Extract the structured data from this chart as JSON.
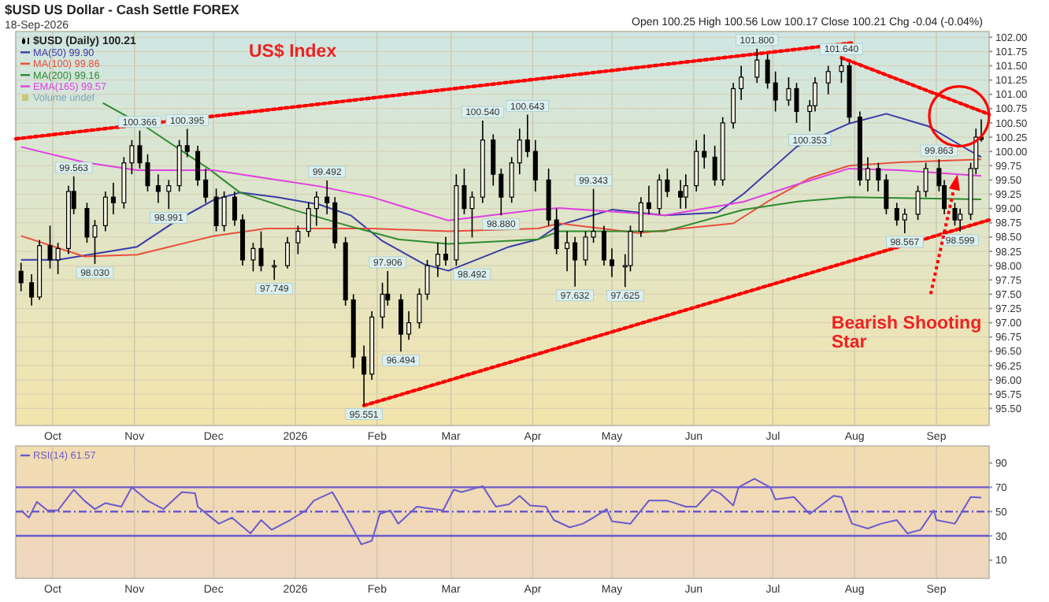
{
  "chart_data": [
    {
      "type": "candlestick",
      "title": "$USD US Dollar - Cash Settle FOREX",
      "subtitle": "18-Sep-2026",
      "annotations": [
        "Open 100.25 High 100.56 Low 100.17 Close 100.21 Chg -0.04 (-0.04%)",
        "US$ Index",
        "Volume undef",
        {
          "text": "Bearish Shooting Star",
          "x": "2026-09-09",
          "y": 99.6
        }
      ],
      "xlim": [
        "2025-09-17",
        "2026-09-21"
      ],
      "xticks": [
        {
          "value": "2025-10-01",
          "label": "Oct"
        },
        {
          "value": "2025-11-01",
          "label": "Nov"
        },
        {
          "value": "2025-12-01",
          "label": "Dec"
        },
        {
          "value": "2026-01-01",
          "label": "2026"
        },
        {
          "value": "2026-02-01",
          "label": "Feb"
        },
        {
          "value": "2026-03-01",
          "label": "Mar"
        },
        {
          "value": "2026-04-01",
          "label": "Apr"
        },
        {
          "value": "2026-05-01",
          "label": "May"
        },
        {
          "value": "2026-06-01",
          "label": "Jun"
        },
        {
          "value": "2026-07-01",
          "label": "Jul"
        },
        {
          "value": "2026-08-01",
          "label": "Aug"
        },
        {
          "value": "2026-09-01",
          "label": "Sep"
        }
      ],
      "ylim": [
        95.2,
        102.1
      ],
      "yticks": [
        {
          "value": 95.5,
          "label": "95.50"
        },
        {
          "value": 95.75,
          "label": "95.75"
        },
        {
          "value": 96,
          "label": "96.00"
        },
        {
          "value": 96.25,
          "label": "96.25"
        },
        {
          "value": 96.5,
          "label": "96.50"
        },
        {
          "value": 96.75,
          "label": "96.75"
        },
        {
          "value": 97,
          "label": "97.00"
        },
        {
          "value": 97.25,
          "label": "97.25"
        },
        {
          "value": 97.5,
          "label": "97.50"
        },
        {
          "value": 97.75,
          "label": "97.75"
        },
        {
          "value": 98,
          "label": "98.00"
        },
        {
          "value": 98.25,
          "label": "98.25"
        },
        {
          "value": 98.5,
          "label": "98.50"
        },
        {
          "value": 98.75,
          "label": "98.75"
        },
        {
          "value": 99,
          "label": "99.00"
        },
        {
          "value": 99.25,
          "label": "99.25"
        },
        {
          "value": 99.5,
          "label": "99.50"
        },
        {
          "value": 99.75,
          "label": "99.75"
        },
        {
          "value": 100,
          "label": "100.00"
        },
        {
          "value": 100.25,
          "label": "100.25"
        },
        {
          "value": 100.5,
          "label": "100.50"
        },
        {
          "value": 100.75,
          "label": "100.75"
        },
        {
          "value": 101,
          "label": "101.00"
        },
        {
          "value": 101.25,
          "label": "101.25"
        },
        {
          "value": 101.5,
          "label": "101.50"
        },
        {
          "value": 101.75,
          "label": "101.75"
        },
        {
          "value": 102,
          "label": "102.00"
        }
      ],
      "grid": true,
      "legend": "top left",
      "series": [
        {
          "type": "candlestick",
          "name": "$USD (Daily) 100.21",
          "color": "#000000",
          "x": [
            "2025-09-19",
            "2025-09-23",
            "2025-09-26",
            "2025-09-30",
            "2025-10-03",
            "2025-10-07",
            "2025-10-09",
            "2025-10-14",
            "2025-10-17",
            "2025-10-21",
            "2025-10-24",
            "2025-10-28",
            "2025-10-31",
            "2025-11-03",
            "2025-11-06",
            "2025-11-10",
            "2025-11-14",
            "2025-11-18",
            "2025-11-21",
            "2025-11-25",
            "2025-11-28",
            "2025-12-02",
            "2025-12-05",
            "2025-12-09",
            "2025-12-12",
            "2025-12-16",
            "2025-12-19",
            "2025-12-24",
            "2025-12-29",
            "2026-01-02",
            "2026-01-06",
            "2026-01-09",
            "2026-01-13",
            "2026-01-16",
            "2026-01-20",
            "2026-01-23",
            "2026-01-27",
            "2026-01-30",
            "2026-02-03",
            "2026-02-05",
            "2026-02-10",
            "2026-02-13",
            "2026-02-17",
            "2026-02-20",
            "2026-02-24",
            "2026-02-27",
            "2026-03-03",
            "2026-03-06",
            "2026-03-09",
            "2026-03-13",
            "2026-03-17",
            "2026-03-20",
            "2026-03-24",
            "2026-03-27",
            "2026-03-30",
            "2026-04-02",
            "2026-04-07",
            "2026-04-10",
            "2026-04-14",
            "2026-04-17",
            "2026-04-21",
            "2026-04-24",
            "2026-04-28",
            "2026-05-01",
            "2026-05-06",
            "2026-05-08",
            "2026-05-12",
            "2026-05-15",
            "2026-05-19",
            "2026-05-22",
            "2026-05-27",
            "2026-05-29",
            "2026-06-02",
            "2026-06-05",
            "2026-06-09",
            "2026-06-12",
            "2026-06-16",
            "2026-06-19",
            "2026-06-25",
            "2026-06-29",
            "2026-07-02",
            "2026-07-07",
            "2026-07-10",
            "2026-07-15",
            "2026-07-17",
            "2026-07-22",
            "2026-07-27",
            "2026-07-30",
            "2026-08-03",
            "2026-08-06",
            "2026-08-10",
            "2026-08-13",
            "2026-08-17",
            "2026-08-20",
            "2026-08-25",
            "2026-08-28",
            "2026-09-02",
            "2026-09-04",
            "2026-09-08",
            "2026-09-10",
            "2026-09-14",
            "2026-09-16",
            "2026-09-18"
          ],
          "ohlc": [
            [
              97.9,
              98.05,
              97.55,
              97.7
            ],
            [
              97.7,
              97.85,
              97.3,
              97.45
            ],
            [
              97.45,
              98.45,
              97.4,
              98.35
            ],
            [
              98.35,
              98.7,
              97.95,
              98.1
            ],
            [
              98.1,
              98.4,
              97.85,
              98.3
            ],
            [
              98.3,
              99.4,
              98.2,
              99.3
            ],
            [
              99.3,
              99.563,
              98.9,
              99.0
            ],
            [
              99.0,
              99.1,
              98.4,
              98.5
            ],
            [
              98.5,
              98.8,
              98.03,
              98.7
            ],
            [
              98.7,
              99.3,
              98.6,
              99.2
            ],
            [
              99.2,
              99.45,
              98.9,
              99.1
            ],
            [
              99.1,
              99.9,
              99.0,
              99.8
            ],
            [
              99.8,
              100.2,
              99.6,
              100.1
            ],
            [
              100.1,
              100.366,
              99.7,
              99.8
            ],
            [
              99.8,
              99.95,
              99.3,
              99.4
            ],
            [
              99.4,
              99.6,
              99.1,
              99.3
            ],
            [
              99.3,
              99.5,
              98.991,
              99.4
            ],
            [
              99.4,
              100.2,
              99.3,
              100.1
            ],
            [
              100.1,
              100.395,
              99.9,
              100.0
            ],
            [
              100.0,
              100.1,
              99.4,
              99.5
            ],
            [
              99.5,
              99.7,
              99.1,
              99.2
            ],
            [
              99.2,
              99.35,
              98.6,
              98.7
            ],
            [
              98.7,
              99.3,
              98.6,
              99.2
            ],
            [
              99.2,
              99.3,
              98.7,
              98.8
            ],
            [
              98.8,
              98.9,
              98.0,
              98.1
            ],
            [
              98.1,
              98.4,
              97.9,
              98.3
            ],
            [
              98.3,
              98.6,
              97.9,
              98.0
            ],
            [
              98.0,
              98.1,
              97.749,
              98.0
            ],
            [
              98.0,
              98.5,
              97.95,
              98.4
            ],
            [
              98.4,
              98.7,
              98.2,
              98.6
            ],
            [
              98.6,
              99.1,
              98.5,
              99.0
            ],
            [
              99.0,
              99.3,
              98.7,
              99.2
            ],
            [
              99.2,
              99.492,
              98.9,
              99.1
            ],
            [
              99.1,
              99.2,
              98.3,
              98.4
            ],
            [
              98.4,
              98.5,
              97.3,
              97.4
            ],
            [
              97.4,
              97.5,
              96.2,
              96.4
            ],
            [
              96.4,
              96.6,
              95.551,
              96.1
            ],
            [
              96.1,
              97.2,
              96.0,
              97.1
            ],
            [
              97.1,
              97.7,
              96.9,
              97.5
            ],
            [
              97.5,
              97.906,
              97.3,
              97.4
            ],
            [
              97.4,
              97.5,
              96.494,
              96.8
            ],
            [
              96.8,
              97.2,
              96.7,
              97.0
            ],
            [
              97.0,
              97.6,
              96.9,
              97.5
            ],
            [
              97.5,
              98.1,
              97.4,
              98.0
            ],
            [
              98.0,
              98.4,
              97.8,
              98.2
            ],
            [
              98.2,
              98.5,
              98.0,
              98.1
            ],
            [
              98.1,
              99.6,
              98.0,
              99.4
            ],
            [
              99.4,
              99.7,
              98.9,
              99.0
            ],
            [
              99.0,
              99.3,
              98.492,
              99.2
            ],
            [
              99.2,
              100.54,
              99.1,
              100.2
            ],
            [
              100.2,
              100.3,
              99.4,
              99.6
            ],
            [
              99.6,
              99.7,
              98.88,
              99.2
            ],
            [
              99.2,
              99.9,
              99.1,
              99.8
            ],
            [
              99.8,
              100.4,
              99.6,
              100.2
            ],
            [
              100.2,
              100.643,
              99.9,
              100.0
            ],
            [
              100.0,
              100.2,
              99.3,
              99.5
            ],
            [
              99.5,
              99.7,
              98.7,
              98.8
            ],
            [
              98.8,
              99.0,
              98.2,
              98.3
            ],
            [
              98.3,
              98.6,
              97.9,
              98.4
            ],
            [
              98.4,
              98.5,
              97.632,
              98.1
            ],
            [
              98.1,
              98.6,
              98.0,
              98.5
            ],
            [
              98.5,
              99.343,
              98.4,
              98.6
            ],
            [
              98.6,
              98.7,
              98.0,
              98.1
            ],
            [
              98.1,
              98.3,
              97.8,
              98.0
            ],
            [
              98.0,
              98.2,
              97.625,
              98.0
            ],
            [
              98.0,
              98.7,
              97.9,
              98.6
            ],
            [
              98.6,
              99.2,
              98.5,
              99.1
            ],
            [
              99.1,
              99.4,
              98.9,
              99.0
            ],
            [
              99.0,
              99.6,
              98.9,
              99.5
            ],
            [
              99.5,
              99.7,
              99.2,
              99.3
            ],
            [
              99.3,
              99.5,
              99.0,
              99.2
            ],
            [
              99.2,
              99.6,
              99.0,
              99.4
            ],
            [
              99.4,
              100.2,
              99.3,
              100.0
            ],
            [
              100.0,
              100.3,
              99.7,
              99.9
            ],
            [
              99.9,
              100.1,
              99.4,
              99.5
            ],
            [
              99.5,
              100.6,
              99.4,
              100.5
            ],
            [
              100.5,
              101.2,
              100.4,
              101.1
            ],
            [
              101.1,
              101.5,
              100.9,
              101.3
            ],
            [
              101.3,
              101.8,
              101.2,
              101.6
            ],
            [
              101.6,
              101.7,
              101.1,
              101.2
            ],
            [
              101.2,
              101.4,
              100.7,
              100.9
            ],
            [
              100.9,
              101.3,
              100.8,
              101.1
            ],
            [
              101.1,
              101.2,
              100.5,
              100.7
            ],
            [
              100.7,
              100.9,
              100.353,
              100.8
            ],
            [
              100.8,
              101.3,
              100.7,
              101.2
            ],
            [
              101.2,
              101.5,
              101.0,
              101.4
            ],
            [
              101.4,
              101.64,
              101.2,
              101.5
            ],
            [
              101.5,
              101.55,
              100.5,
              100.6
            ],
            [
              100.6,
              100.7,
              99.4,
              99.5
            ],
            [
              99.5,
              99.9,
              99.3,
              99.7
            ],
            [
              99.7,
              99.8,
              99.3,
              99.5
            ],
            [
              99.5,
              99.6,
              98.9,
              99.0
            ],
            [
              99.0,
              99.1,
              98.7,
              98.8
            ],
            [
              98.8,
              99.0,
              98.567,
              98.9
            ],
            [
              98.9,
              99.4,
              98.8,
              99.3
            ],
            [
              99.3,
              99.8,
              99.2,
              99.7
            ],
            [
              99.7,
              99.863,
              99.3,
              99.4
            ],
            [
              99.4,
              99.5,
              98.9,
              99.0
            ],
            [
              99.0,
              99.1,
              98.7,
              98.8
            ],
            [
              98.8,
              99.0,
              98.599,
              98.9
            ],
            [
              98.9,
              99.8,
              98.8,
              99.7
            ],
            [
              99.7,
              100.4,
              99.6,
              100.25
            ],
            [
              100.25,
              100.56,
              100.17,
              100.21
            ]
          ],
          "value_labels": [
            null,
            null,
            null,
            null,
            null,
            null,
            "99.563",
            null,
            "98.030",
            null,
            null,
            null,
            null,
            "100.366",
            null,
            null,
            "98.991",
            null,
            "100.395",
            null,
            null,
            null,
            null,
            null,
            null,
            null,
            null,
            "97.749",
            null,
            null,
            null,
            null,
            "99.492",
            null,
            null,
            null,
            "95.551",
            null,
            null,
            "97.906",
            "96.494",
            null,
            null,
            null,
            null,
            null,
            null,
            null,
            "98.492",
            "100.540",
            null,
            "98.880",
            null,
            null,
            "100.643",
            null,
            null,
            null,
            null,
            "97.632",
            null,
            "99.343",
            null,
            null,
            "97.625",
            null,
            null,
            null,
            null,
            null,
            null,
            null,
            null,
            null,
            null,
            null,
            null,
            null,
            "101.800",
            null,
            null,
            null,
            null,
            "100.353",
            null,
            null,
            "101.640",
            null,
            null,
            null,
            null,
            null,
            null,
            "98.567",
            null,
            null,
            "99.863",
            null,
            null,
            "98.599",
            null,
            null,
            null
          ]
        },
        {
          "type": "line",
          "name": "MA(50) 99.90",
          "color": "#3a3aa8",
          "x": [
            "2025-09-19",
            "2025-10-03",
            "2025-11-02",
            "2025-11-17",
            "2025-12-01",
            "2025-12-11",
            "2025-12-25",
            "2026-01-10",
            "2026-01-22",
            "2026-02-03",
            "2026-02-19",
            "2026-02-28",
            "2026-03-11",
            "2026-03-23",
            "2026-04-03",
            "2026-04-11",
            "2026-05-01",
            "2026-05-21",
            "2026-06-10",
            "2026-06-20",
            "2026-07-10",
            "2026-07-30",
            "2026-08-13",
            "2026-08-29",
            "2026-09-13",
            "2026-09-18"
          ],
          "values": [
            98.1,
            98.1,
            98.33,
            98.79,
            99.15,
            99.28,
            99.2,
            99.07,
            98.88,
            98.43,
            98.02,
            97.91,
            98.11,
            98.33,
            98.46,
            98.71,
            98.98,
            98.88,
            98.93,
            99.26,
            100.08,
            100.49,
            100.66,
            100.44,
            100.03,
            99.9
          ]
        },
        {
          "type": "line",
          "name": "MA(100) 99.86",
          "color": "#e8503c",
          "x": [
            "2025-09-19",
            "2025-10-13",
            "2025-11-02",
            "2025-12-01",
            "2025-12-21",
            "2026-01-10",
            "2026-01-30",
            "2026-02-28",
            "2026-04-03",
            "2026-04-11",
            "2026-05-11",
            "2026-06-16",
            "2026-06-30",
            "2026-07-15",
            "2026-07-30",
            "2026-08-18",
            "2026-09-18"
          ],
          "values": [
            98.52,
            98.16,
            98.19,
            98.52,
            98.65,
            98.65,
            98.65,
            98.6,
            98.65,
            98.74,
            98.57,
            98.74,
            99.15,
            99.53,
            99.75,
            99.81,
            99.86
          ]
        },
        {
          "type": "line",
          "name": "MA(200) 99.16",
          "color": "#2e8b2e",
          "x": [
            "2025-10-20",
            "2025-11-05",
            "2025-11-29",
            "2025-12-11",
            "2025-12-31",
            "2026-01-20",
            "2026-02-09",
            "2026-02-28",
            "2026-04-03",
            "2026-04-11",
            "2026-05-21",
            "2026-06-20",
            "2026-07-10",
            "2026-07-30",
            "2026-09-18"
          ],
          "values": [
            100.85,
            100.44,
            99.7,
            99.28,
            98.98,
            98.71,
            98.46,
            98.38,
            98.46,
            98.6,
            98.6,
            98.98,
            99.12,
            99.2,
            99.16
          ]
        },
        {
          "type": "line",
          "name": "EMA(165) 99.57",
          "color": "#e040e0",
          "x": [
            "2025-09-19",
            "2025-10-13",
            "2025-11-02",
            "2025-12-01",
            "2025-12-21",
            "2026-01-10",
            "2026-01-30",
            "2026-02-28",
            "2026-04-03",
            "2026-04-11",
            "2026-05-21",
            "2026-06-20",
            "2026-07-10",
            "2026-07-30",
            "2026-08-18",
            "2026-09-18"
          ],
          "values": [
            100.08,
            99.81,
            99.67,
            99.67,
            99.53,
            99.39,
            99.2,
            98.79,
            98.98,
            99.01,
            98.88,
            99.12,
            99.42,
            99.7,
            99.67,
            99.57
          ]
        },
        {
          "type": "line",
          "color": "#ff0000",
          "line_style": "dotted",
          "x": [
            "2025-09-17",
            "2026-07-31"
          ],
          "values": [
            100.22,
            101.9
          ]
        },
        {
          "type": "line",
          "color": "#ff0000",
          "line_style": "dotted",
          "x": [
            "2026-01-27",
            "2026-09-21"
          ],
          "values": [
            95.55,
            98.8
          ]
        },
        {
          "type": "line",
          "color": "#ff0000",
          "line_style": "dotted",
          "x": [
            "2026-07-27",
            "2026-09-21"
          ],
          "values": [
            101.64,
            100.65
          ]
        }
      ]
    },
    {
      "type": "line",
      "xlim": [
        "2025-09-17",
        "2026-09-21"
      ],
      "xticks": [
        {
          "value": "2025-10-01",
          "label": "Oct"
        },
        {
          "value": "2025-11-01",
          "label": "Nov"
        },
        {
          "value": "2025-12-01",
          "label": "Dec"
        },
        {
          "value": "2026-01-01",
          "label": "2026"
        },
        {
          "value": "2026-02-01",
          "label": "Feb"
        },
        {
          "value": "2026-03-01",
          "label": "Mar"
        },
        {
          "value": "2026-04-01",
          "label": "Apr"
        },
        {
          "value": "2026-05-01",
          "label": "May"
        },
        {
          "value": "2026-06-01",
          "label": "Jun"
        },
        {
          "value": "2026-07-01",
          "label": "Jul"
        },
        {
          "value": "2026-08-01",
          "label": "Aug"
        },
        {
          "value": "2026-09-01",
          "label": "Sep"
        }
      ],
      "ylim": [
        -5,
        104
      ],
      "yticks": [
        10,
        30,
        50,
        70,
        90
      ],
      "grid": "x",
      "legend": "top left",
      "ref_lines": [
        {
          "axis": "y",
          "value": 70,
          "color": "#6a5acd",
          "line_style": "solid"
        },
        {
          "axis": "y",
          "value": 30,
          "color": "#6a5acd",
          "line_style": "solid"
        },
        {
          "axis": "y",
          "value": 50,
          "color": "#6a5acd",
          "line_style": "dashed"
        }
      ],
      "series": [
        {
          "name": "RSI(14) 61.57",
          "color": "#6a5acd",
          "x": [
            "2025-09-19",
            "2025-09-22",
            "2025-09-25",
            "2025-09-29",
            "2025-10-03",
            "2025-10-09",
            "2025-10-13",
            "2025-10-17",
            "2025-10-21",
            "2025-10-27",
            "2025-10-31",
            "2025-11-06",
            "2025-11-12",
            "2025-11-19",
            "2025-11-24",
            "2025-11-25",
            "2025-12-03",
            "2025-12-08",
            "2025-12-15",
            "2025-12-19",
            "2025-12-23",
            "2025-12-30",
            "2026-01-05",
            "2026-01-08",
            "2026-01-15",
            "2026-01-19",
            "2026-01-26",
            "2026-01-30",
            "2026-02-02",
            "2026-02-06",
            "2026-02-09",
            "2026-02-16",
            "2026-02-26",
            "2026-03-02",
            "2026-03-05",
            "2026-03-13",
            "2026-03-18",
            "2026-03-23",
            "2026-03-27",
            "2026-03-31",
            "2026-04-06",
            "2026-04-09",
            "2026-04-15",
            "2026-04-20",
            "2026-04-24",
            "2026-04-29",
            "2026-05-01",
            "2026-05-08",
            "2026-05-15",
            "2026-05-22",
            "2026-05-29",
            "2026-06-02",
            "2026-06-08",
            "2026-06-11",
            "2026-06-16",
            "2026-06-18",
            "2026-06-24",
            "2026-06-30",
            "2026-07-02",
            "2026-07-09",
            "2026-07-15",
            "2026-07-24",
            "2026-07-27",
            "2026-07-31",
            "2026-08-06",
            "2026-08-11",
            "2026-08-17",
            "2026-08-21",
            "2026-08-26",
            "2026-08-31",
            "2026-09-01",
            "2026-09-08",
            "2026-09-14",
            "2026-09-18"
          ],
          "values": [
            51,
            45,
            58,
            51,
            51,
            68,
            59,
            52,
            57,
            54,
            70,
            59,
            52,
            66,
            65,
            54,
            40,
            45,
            32,
            43,
            35,
            43,
            51,
            59,
            66,
            51,
            23,
            26,
            48,
            51,
            40,
            54,
            51,
            68,
            66,
            71,
            54,
            56,
            63,
            55,
            54,
            43,
            37,
            40,
            45,
            52,
            42,
            40,
            59,
            59,
            54,
            54,
            68,
            65,
            55,
            70,
            77,
            70,
            60,
            62,
            48,
            63,
            62,
            40,
            36,
            40,
            43,
            32,
            35,
            51,
            43,
            40,
            62,
            61.57
          ]
        }
      ]
    }
  ]
}
